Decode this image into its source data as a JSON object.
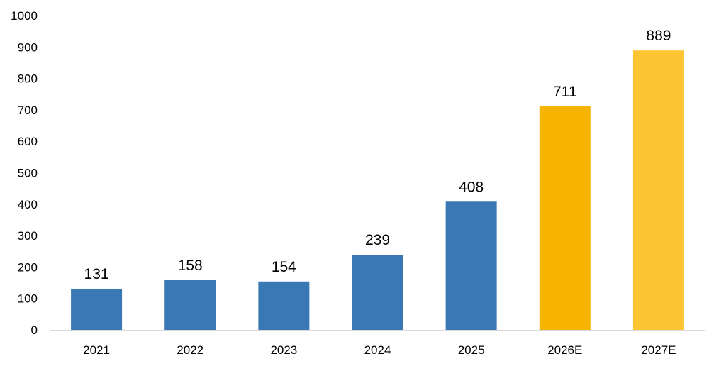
{
  "chart_data": {
    "type": "bar",
    "title": "",
    "xlabel": "",
    "ylabel": "",
    "categories": [
      "2021",
      "2022",
      "2023",
      "2024",
      "2025",
      "2026E",
      "2027E"
    ],
    "values": [
      131,
      158,
      154,
      239,
      408,
      711,
      889
    ],
    "colors": [
      "#3A78B5",
      "#3A78B5",
      "#3A78B5",
      "#3A78B5",
      "#3A78B5",
      "#F6B400",
      "#FDC534"
    ],
    "ylim": [
      0,
      1000
    ],
    "yticks": [
      0,
      100,
      200,
      300,
      400,
      500,
      600,
      700,
      800,
      900,
      1000
    ],
    "ytick_labels": [
      "0",
      "100",
      "200",
      "300",
      "400",
      "500",
      "600",
      "700",
      "800",
      "900",
      "1000"
    ],
    "grid": false,
    "legend": "none",
    "data_labels": [
      "131",
      "158",
      "154",
      "239",
      "408",
      "711",
      "889"
    ]
  }
}
